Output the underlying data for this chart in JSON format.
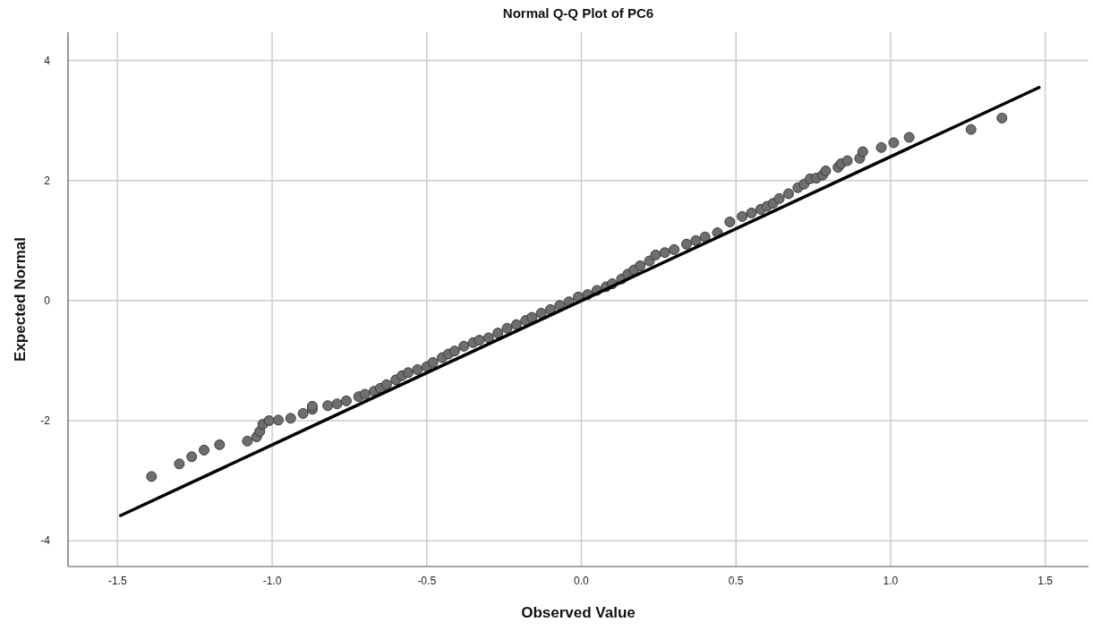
{
  "chart_data": {
    "type": "scatter",
    "title": "Normal Q-Q Plot of PC6",
    "xlabel": "Observed Value",
    "ylabel": "Expected Normal",
    "xlim": [
      -1.66,
      1.64
    ],
    "ylim": [
      -4.43,
      4.47
    ],
    "xticks": [
      {
        "value": -1.5,
        "label": "-1.5"
      },
      {
        "value": -1,
        "label": "-1.0"
      },
      {
        "value": -0.5,
        "label": "-0.5"
      },
      {
        "value": 0,
        "label": "0.0"
      },
      {
        "value": 0.5,
        "label": "0.5"
      },
      {
        "value": 1,
        "label": "1.0"
      },
      {
        "value": 1.5,
        "label": "1.5"
      }
    ],
    "yticks": [
      -4,
      -2,
      0,
      2,
      4
    ],
    "grid": true,
    "series": [
      {
        "marker": "circle",
        "color": "#6e6e6e",
        "x": [
          -1.39,
          -1.3,
          -1.26,
          -1.22,
          -1.17,
          -1.08,
          -1.05,
          -1.04,
          -1.03,
          -1.01,
          -0.98,
          -0.94,
          -0.9,
          -0.87,
          -0.87,
          -0.82,
          -0.79,
          -0.76,
          -0.72,
          -0.7,
          -0.67,
          -0.65,
          -0.63,
          -0.6,
          -0.58,
          -0.56,
          -0.53,
          -0.5,
          -0.48,
          -0.45,
          -0.43,
          -0.41,
          -0.38,
          -0.35,
          -0.33,
          -0.3,
          -0.27,
          -0.24,
          -0.21,
          -0.18,
          -0.16,
          -0.13,
          -0.1,
          -0.07,
          -0.04,
          -0.01,
          0.02,
          0.05,
          0.08,
          0.1,
          0.13,
          0.15,
          0.17,
          0.19,
          0.22,
          0.24,
          0.27,
          0.3,
          0.34,
          0.37,
          0.4,
          0.44,
          0.48,
          0.52,
          0.55,
          0.58,
          0.6,
          0.62,
          0.64,
          0.67,
          0.7,
          0.72,
          0.74,
          0.76,
          0.78,
          0.79,
          0.83,
          0.84,
          0.86,
          0.9,
          0.91,
          0.97,
          1.01,
          1.06,
          1.26,
          1.36
        ],
        "values": [
          -2.93,
          -2.72,
          -2.6,
          -2.49,
          -2.4,
          -2.34,
          -2.27,
          -2.18,
          -2.06,
          -2.0,
          -1.99,
          -1.96,
          -1.88,
          -1.81,
          -1.76,
          -1.75,
          -1.72,
          -1.67,
          -1.6,
          -1.56,
          -1.51,
          -1.46,
          -1.4,
          -1.32,
          -1.25,
          -1.2,
          -1.15,
          -1.1,
          -1.03,
          -0.95,
          -0.89,
          -0.84,
          -0.76,
          -0.7,
          -0.66,
          -0.62,
          -0.54,
          -0.46,
          -0.4,
          -0.33,
          -0.28,
          -0.21,
          -0.15,
          -0.08,
          -0.02,
          0.06,
          0.1,
          0.17,
          0.23,
          0.28,
          0.36,
          0.44,
          0.51,
          0.58,
          0.66,
          0.76,
          0.8,
          0.85,
          0.94,
          1.0,
          1.06,
          1.13,
          1.31,
          1.4,
          1.46,
          1.52,
          1.57,
          1.62,
          1.7,
          1.78,
          1.88,
          1.94,
          2.03,
          2.04,
          2.09,
          2.16,
          2.22,
          2.28,
          2.33,
          2.37,
          2.48,
          2.55,
          2.63,
          2.72,
          2.85,
          3.04
        ]
      },
      {
        "type": "line",
        "color": "#000000",
        "x": [
          -1.49,
          1.48
        ],
        "values": [
          -3.58,
          3.55
        ]
      }
    ]
  }
}
